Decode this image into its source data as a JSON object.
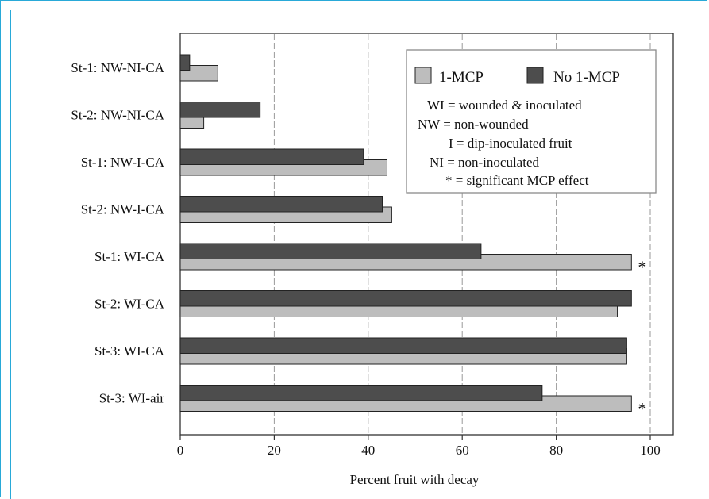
{
  "chart_data": {
    "type": "bar",
    "orientation": "horizontal",
    "categories": [
      "St-1: NW-NI-CA",
      "St-2: NW-NI-CA",
      "St-1: NW-I-CA",
      "St-2: NW-I-CA",
      "St-1: WI-CA",
      "St-2: WI-CA",
      "St-3: WI-CA",
      "St-3: WI-air"
    ],
    "series": [
      {
        "name": "1-MCP",
        "color": "#bdbdbd",
        "values": [
          8,
          5,
          44,
          45,
          96,
          93,
          95,
          96
        ]
      },
      {
        "name": "No 1-MCP",
        "color": "#4d4d4d",
        "values": [
          2,
          17,
          39,
          43,
          64,
          96,
          95,
          77
        ]
      }
    ],
    "significant": [
      false,
      false,
      false,
      false,
      true,
      false,
      false,
      true
    ],
    "significance_marker": "*",
    "xlabel": "Percent fruit with decay",
    "xlim": [
      0,
      105
    ],
    "xticks": [
      0,
      20,
      40,
      60,
      80,
      100
    ],
    "grid": "vertical dashed",
    "legend_position": "top-right",
    "notes": [
      "WI = wounded & inoculated",
      "NW = non-wounded",
      "I = dip-inoculated fruit",
      "NI = non-inoculated",
      "* = significant MCP effect"
    ]
  }
}
